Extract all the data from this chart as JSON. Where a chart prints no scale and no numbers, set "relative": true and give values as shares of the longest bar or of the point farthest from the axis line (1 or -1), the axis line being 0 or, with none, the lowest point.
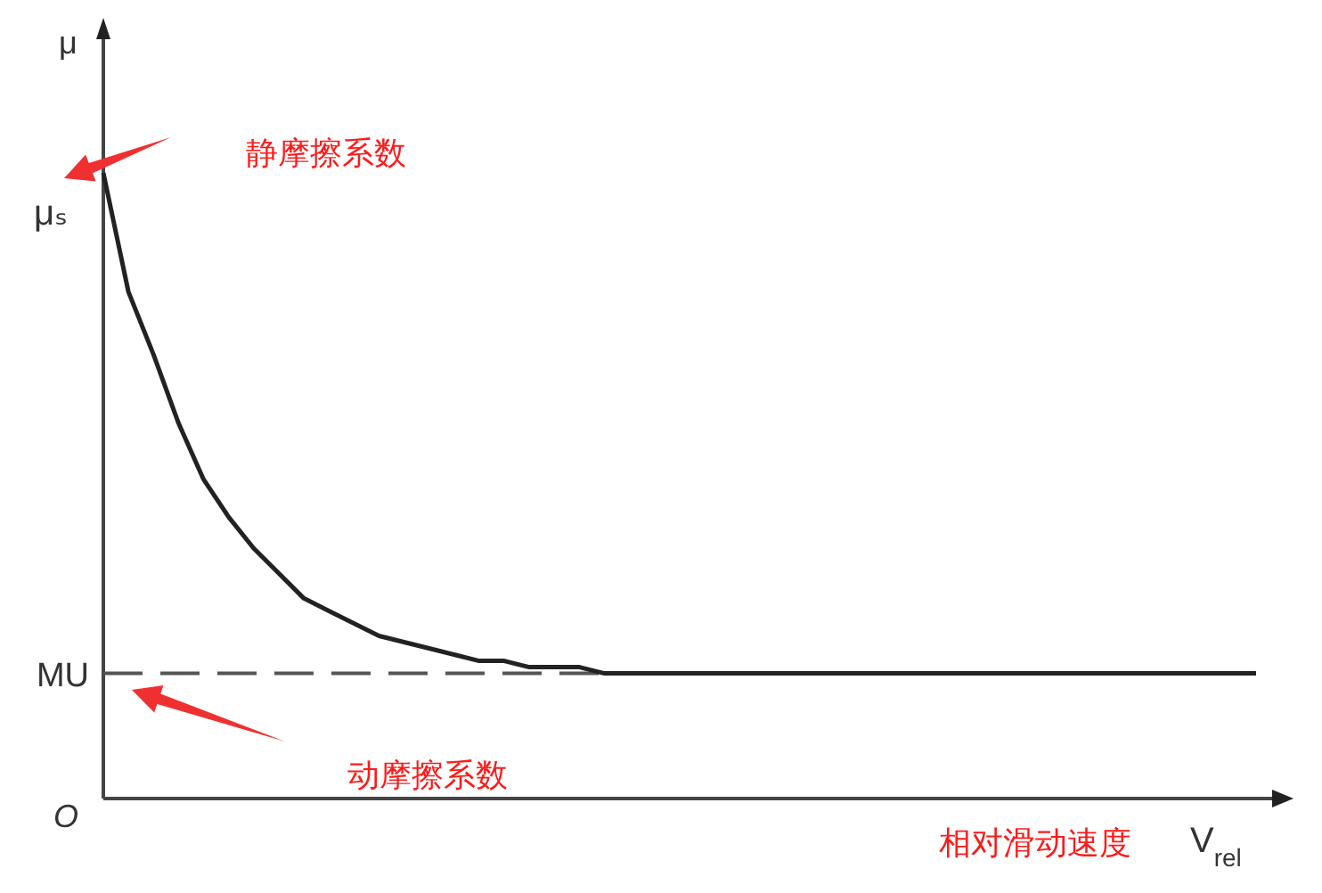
{
  "chart_data": {
    "type": "line",
    "relative": true,
    "ylabel": "μ",
    "xlabel": "V$_{rel}$",
    "categories": [
      null,
      null,
      null,
      null,
      null,
      null,
      null,
      null,
      null,
      null,
      null,
      null,
      null,
      null,
      null,
      null,
      null,
      null,
      null,
      null,
      null,
      null,
      null,
      null,
      null,
      null,
      null,
      null,
      null,
      null,
      null,
      null,
      null,
      null,
      null,
      null,
      null,
      null,
      null,
      null,
      null,
      null,
      null,
      null,
      null,
      null,
      null
    ],
    "series": [
      {
        "color": "#222222",
        "values": [
          1.0,
          0.81,
          0.71,
          0.6,
          0.51,
          0.45,
          0.4,
          0.36,
          0.32,
          0.3,
          0.28,
          0.26,
          0.25,
          0.24,
          0.23,
          0.22,
          0.22,
          0.21,
          0.21,
          0.21,
          0.2,
          0.2,
          0.2,
          0.2,
          0.2,
          0.2,
          0.2,
          0.2,
          0.2,
          0.2,
          0.2,
          0.2,
          0.2,
          0.2,
          0.2,
          0.2,
          0.2,
          0.2,
          0.2,
          0.2,
          0.2,
          0.2,
          0.2,
          0.2,
          0.2,
          0.2,
          0.2
        ]
      }
    ],
    "line_style": "solid",
    "marker": "none",
    "ref_lines": [
      {
        "axis": "y",
        "value": 0.2,
        "label": "MU",
        "color": "#555555",
        "line_style": "dashed"
      }
    ],
    "annotations": [
      "μₛ",
      "静摩擦系数",
      "动摩擦系数",
      "相对滑动速度",
      "O"
    ]
  }
}
